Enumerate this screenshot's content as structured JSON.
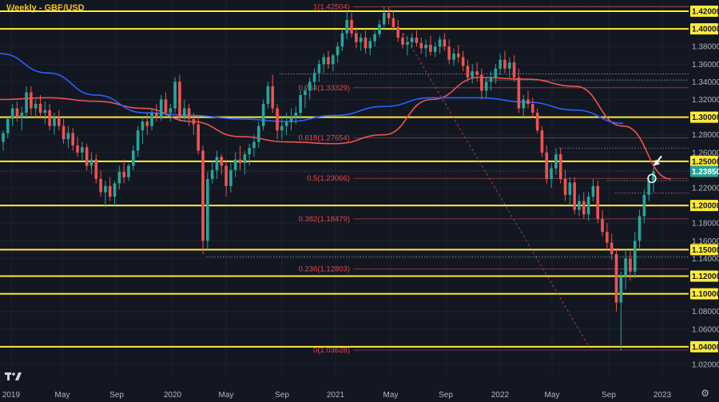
{
  "chart_data": {
    "type": "candlestick",
    "title": "Weekly - GBP/USD",
    "symbol": "GBP/USD",
    "timeframe": "Weekly",
    "ylim": [
      1.005,
      1.432
    ],
    "y_ticks": [
      1.02,
      1.04,
      1.06,
      1.08,
      1.1,
      1.12,
      1.14,
      1.16,
      1.18,
      1.2,
      1.22,
      1.24,
      1.26,
      1.28,
      1.3,
      1.32,
      1.34,
      1.36,
      1.38,
      1.4,
      1.42
    ],
    "x_ticks": [
      "2019",
      "May",
      "Sep",
      "2020",
      "May",
      "Sep",
      "2021",
      "May",
      "Sep",
      "2022",
      "May",
      "Sep",
      "2023"
    ],
    "current_price": "1.23850",
    "horizontal_levels": [
      {
        "value": 1.42,
        "label": "1.42000"
      },
      {
        "value": 1.4,
        "label": "1.40000"
      },
      {
        "value": 1.3,
        "label": "1.30000"
      },
      {
        "value": 1.25,
        "label": "1.25000"
      },
      {
        "value": 1.2,
        "label": "1.20000"
      },
      {
        "value": 1.15,
        "label": "1.15000"
      },
      {
        "value": 1.12,
        "label": "1.12000"
      },
      {
        "value": 1.1,
        "label": "1.10000"
      },
      {
        "value": 1.04,
        "label": "1.04000"
      }
    ],
    "fibonacci_levels": [
      {
        "value": 1.42504,
        "label": "1(1.42504)"
      },
      {
        "value": 1.33329,
        "label": "0.764(1.33329)"
      },
      {
        "value": 1.27654,
        "label": "0.618(1.27654)"
      },
      {
        "value": 1.23066,
        "label": "0.5(1.23066)"
      },
      {
        "value": 1.18479,
        "label": "0.382(1.18479)"
      },
      {
        "value": 1.12803,
        "label": "0.236(1.12803)"
      },
      {
        "value": 1.03628,
        "label": "0(1.03628)"
      }
    ],
    "dotted_levels": [
      1.4254,
      1.4,
      1.349,
      1.342,
      1.265,
      1.228,
      1.214,
      1.142
    ],
    "series": [
      {
        "name": "",
        "color": "#ef5350",
        "values": [
          [
            0,
            1.32
          ],
          [
            1,
            1.322
          ],
          [
            2,
            1.318
          ],
          [
            3,
            1.31
          ],
          [
            4,
            1.295
          ],
          [
            5,
            1.278
          ],
          [
            6,
            1.272
          ],
          [
            7,
            1.27
          ],
          [
            8,
            1.28
          ],
          [
            9,
            1.32
          ],
          [
            10,
            1.345
          ],
          [
            11,
            1.343
          ],
          [
            12,
            1.335
          ],
          [
            13,
            1.29
          ],
          [
            14,
            1.23
          ]
        ]
      },
      {
        "name": "",
        "color": "#2962ff",
        "values": [
          [
            0,
            1.372
          ],
          [
            1,
            1.35
          ],
          [
            2,
            1.325
          ],
          [
            3,
            1.305
          ],
          [
            4,
            1.302
          ],
          [
            5,
            1.298
          ],
          [
            6,
            1.295
          ],
          [
            7,
            1.302
          ],
          [
            8,
            1.312
          ],
          [
            9,
            1.322
          ],
          [
            10,
            1.322
          ],
          [
            11,
            1.317
          ],
          [
            12,
            1.308
          ],
          [
            13,
            1.293
          ]
        ]
      }
    ],
    "candles": [
      [
        1.272,
        1.285,
        1.262,
        1.282
      ],
      [
        1.282,
        1.3,
        1.276,
        1.298
      ],
      [
        1.298,
        1.315,
        1.29,
        1.31
      ],
      [
        1.31,
        1.318,
        1.295,
        1.3
      ],
      [
        1.3,
        1.312,
        1.285,
        1.305
      ],
      [
        1.305,
        1.335,
        1.298,
        1.328
      ],
      [
        1.328,
        1.335,
        1.302,
        1.31
      ],
      [
        1.31,
        1.32,
        1.3,
        1.315
      ],
      [
        1.315,
        1.325,
        1.3,
        1.305
      ],
      [
        1.305,
        1.318,
        1.292,
        1.308
      ],
      [
        1.308,
        1.315,
        1.285,
        1.29
      ],
      [
        1.29,
        1.305,
        1.28,
        1.3
      ],
      [
        1.3,
        1.308,
        1.285,
        1.29
      ],
      [
        1.29,
        1.298,
        1.27,
        1.275
      ],
      [
        1.275,
        1.29,
        1.265,
        1.282
      ],
      [
        1.282,
        1.288,
        1.262,
        1.268
      ],
      [
        1.268,
        1.278,
        1.255,
        1.26
      ],
      [
        1.26,
        1.272,
        1.25,
        1.266
      ],
      [
        1.266,
        1.27,
        1.24,
        1.245
      ],
      [
        1.245,
        1.26,
        1.235,
        1.252
      ],
      [
        1.252,
        1.258,
        1.225,
        1.23
      ],
      [
        1.23,
        1.24,
        1.21,
        1.215
      ],
      [
        1.215,
        1.228,
        1.198,
        1.222
      ],
      [
        1.222,
        1.232,
        1.205,
        1.21
      ],
      [
        1.21,
        1.228,
        1.2,
        1.225
      ],
      [
        1.225,
        1.245,
        1.218,
        1.238
      ],
      [
        1.238,
        1.252,
        1.225,
        1.232
      ],
      [
        1.232,
        1.248,
        1.228,
        1.245
      ],
      [
        1.245,
        1.268,
        1.24,
        1.262
      ],
      [
        1.262,
        1.29,
        1.255,
        1.285
      ],
      [
        1.285,
        1.3,
        1.27,
        1.295
      ],
      [
        1.295,
        1.305,
        1.28,
        1.29
      ],
      [
        1.29,
        1.31,
        1.285,
        1.305
      ],
      [
        1.305,
        1.315,
        1.295,
        1.3
      ],
      [
        1.3,
        1.325,
        1.296,
        1.32
      ],
      [
        1.32,
        1.328,
        1.3,
        1.305
      ],
      [
        1.305,
        1.315,
        1.295,
        1.31
      ],
      [
        1.31,
        1.345,
        1.305,
        1.34
      ],
      [
        1.34,
        1.348,
        1.295,
        1.3
      ],
      [
        1.3,
        1.32,
        1.295,
        1.31
      ],
      [
        1.31,
        1.315,
        1.29,
        1.298
      ],
      [
        1.298,
        1.305,
        1.28,
        1.292
      ],
      [
        1.292,
        1.302,
        1.258,
        1.262
      ],
      [
        1.262,
        1.268,
        1.145,
        1.16
      ],
      [
        1.16,
        1.238,
        1.15,
        1.23
      ],
      [
        1.23,
        1.25,
        1.225,
        1.24
      ],
      [
        1.24,
        1.262,
        1.23,
        1.255
      ],
      [
        1.255,
        1.258,
        1.235,
        1.245
      ],
      [
        1.245,
        1.252,
        1.21,
        1.222
      ],
      [
        1.222,
        1.248,
        1.215,
        1.24
      ],
      [
        1.24,
        1.26,
        1.232,
        1.252
      ],
      [
        1.252,
        1.268,
        1.24,
        1.248
      ],
      [
        1.248,
        1.262,
        1.235,
        1.258
      ],
      [
        1.258,
        1.27,
        1.245,
        1.265
      ],
      [
        1.265,
        1.28,
        1.255,
        1.272
      ],
      [
        1.272,
        1.295,
        1.265,
        1.29
      ],
      [
        1.29,
        1.32,
        1.285,
        1.315
      ],
      [
        1.315,
        1.34,
        1.31,
        1.335
      ],
      [
        1.335,
        1.348,
        1.305,
        1.31
      ],
      [
        1.31,
        1.315,
        1.275,
        1.285
      ],
      [
        1.285,
        1.3,
        1.275,
        1.29
      ],
      [
        1.29,
        1.305,
        1.28,
        1.295
      ],
      [
        1.295,
        1.31,
        1.285,
        1.3
      ],
      [
        1.3,
        1.312,
        1.292,
        1.305
      ],
      [
        1.305,
        1.33,
        1.298,
        1.325
      ],
      [
        1.325,
        1.335,
        1.31,
        1.33
      ],
      [
        1.33,
        1.345,
        1.32,
        1.34
      ],
      [
        1.34,
        1.355,
        1.33,
        1.35
      ],
      [
        1.35,
        1.365,
        1.34,
        1.36
      ],
      [
        1.36,
        1.372,
        1.35,
        1.368
      ],
      [
        1.368,
        1.375,
        1.355,
        1.36
      ],
      [
        1.36,
        1.372,
        1.352,
        1.37
      ],
      [
        1.37,
        1.385,
        1.362,
        1.38
      ],
      [
        1.38,
        1.4,
        1.375,
        1.395
      ],
      [
        1.395,
        1.42,
        1.388,
        1.41
      ],
      [
        1.41,
        1.418,
        1.39,
        1.395
      ],
      [
        1.395,
        1.4,
        1.378,
        1.385
      ],
      [
        1.385,
        1.395,
        1.375,
        1.39
      ],
      [
        1.39,
        1.398,
        1.372,
        1.378
      ],
      [
        1.378,
        1.39,
        1.37,
        1.386
      ],
      [
        1.386,
        1.398,
        1.38,
        1.394
      ],
      [
        1.394,
        1.41,
        1.39,
        1.405
      ],
      [
        1.405,
        1.425,
        1.4,
        1.418
      ],
      [
        1.418,
        1.425,
        1.405,
        1.412
      ],
      [
        1.412,
        1.42,
        1.398,
        1.402
      ],
      [
        1.402,
        1.41,
        1.385,
        1.39
      ],
      [
        1.39,
        1.395,
        1.378,
        1.382
      ],
      [
        1.382,
        1.392,
        1.37,
        1.385
      ],
      [
        1.385,
        1.395,
        1.378,
        1.39
      ],
      [
        1.39,
        1.398,
        1.38,
        1.384
      ],
      [
        1.384,
        1.39,
        1.372,
        1.378
      ],
      [
        1.378,
        1.388,
        1.368,
        1.382
      ],
      [
        1.382,
        1.392,
        1.37,
        1.374
      ],
      [
        1.374,
        1.385,
        1.368,
        1.38
      ],
      [
        1.38,
        1.392,
        1.372,
        1.388
      ],
      [
        1.388,
        1.395,
        1.375,
        1.38
      ],
      [
        1.38,
        1.388,
        1.36,
        1.365
      ],
      [
        1.365,
        1.378,
        1.358,
        1.372
      ],
      [
        1.372,
        1.382,
        1.362,
        1.368
      ],
      [
        1.368,
        1.375,
        1.352,
        1.358
      ],
      [
        1.358,
        1.365,
        1.34,
        1.345
      ],
      [
        1.345,
        1.36,
        1.338,
        1.352
      ],
      [
        1.352,
        1.362,
        1.34,
        1.348
      ],
      [
        1.348,
        1.355,
        1.32,
        1.33
      ],
      [
        1.33,
        1.345,
        1.322,
        1.34
      ],
      [
        1.34,
        1.352,
        1.33,
        1.345
      ],
      [
        1.345,
        1.36,
        1.338,
        1.355
      ],
      [
        1.355,
        1.372,
        1.348,
        1.365
      ],
      [
        1.365,
        1.375,
        1.35,
        1.355
      ],
      [
        1.355,
        1.368,
        1.345,
        1.362
      ],
      [
        1.362,
        1.37,
        1.34,
        1.345
      ],
      [
        1.345,
        1.355,
        1.305,
        1.31
      ],
      [
        1.31,
        1.325,
        1.3,
        1.32
      ],
      [
        1.32,
        1.33,
        1.31,
        1.315
      ],
      [
        1.315,
        1.322,
        1.3,
        1.305
      ],
      [
        1.305,
        1.31,
        1.282,
        1.285
      ],
      [
        1.285,
        1.29,
        1.255,
        1.26
      ],
      [
        1.26,
        1.268,
        1.225,
        1.23
      ],
      [
        1.23,
        1.248,
        1.22,
        1.242
      ],
      [
        1.242,
        1.265,
        1.235,
        1.258
      ],
      [
        1.258,
        1.265,
        1.225,
        1.23
      ],
      [
        1.23,
        1.24,
        1.205,
        1.212
      ],
      [
        1.212,
        1.232,
        1.2,
        1.226
      ],
      [
        1.226,
        1.232,
        1.19,
        1.195
      ],
      [
        1.195,
        1.212,
        1.188,
        1.205
      ],
      [
        1.205,
        1.215,
        1.185,
        1.19
      ],
      [
        1.19,
        1.215,
        1.182,
        1.21
      ],
      [
        1.21,
        1.23,
        1.205,
        1.222
      ],
      [
        1.222,
        1.228,
        1.18,
        1.185
      ],
      [
        1.185,
        1.195,
        1.165,
        1.17
      ],
      [
        1.17,
        1.18,
        1.15,
        1.158
      ],
      [
        1.158,
        1.168,
        1.138,
        1.145
      ],
      [
        1.145,
        1.152,
        1.08,
        1.09
      ],
      [
        1.09,
        1.125,
        1.036,
        1.12
      ],
      [
        1.12,
        1.15,
        1.105,
        1.14
      ],
      [
        1.14,
        1.148,
        1.115,
        1.125
      ],
      [
        1.125,
        1.17,
        1.118,
        1.16
      ],
      [
        1.16,
        1.195,
        1.15,
        1.188
      ],
      [
        1.188,
        1.218,
        1.18,
        1.212
      ],
      [
        1.212,
        1.235,
        1.205,
        1.228
      ],
      [
        1.228,
        1.243,
        1.215,
        1.2385
      ]
    ]
  }
}
